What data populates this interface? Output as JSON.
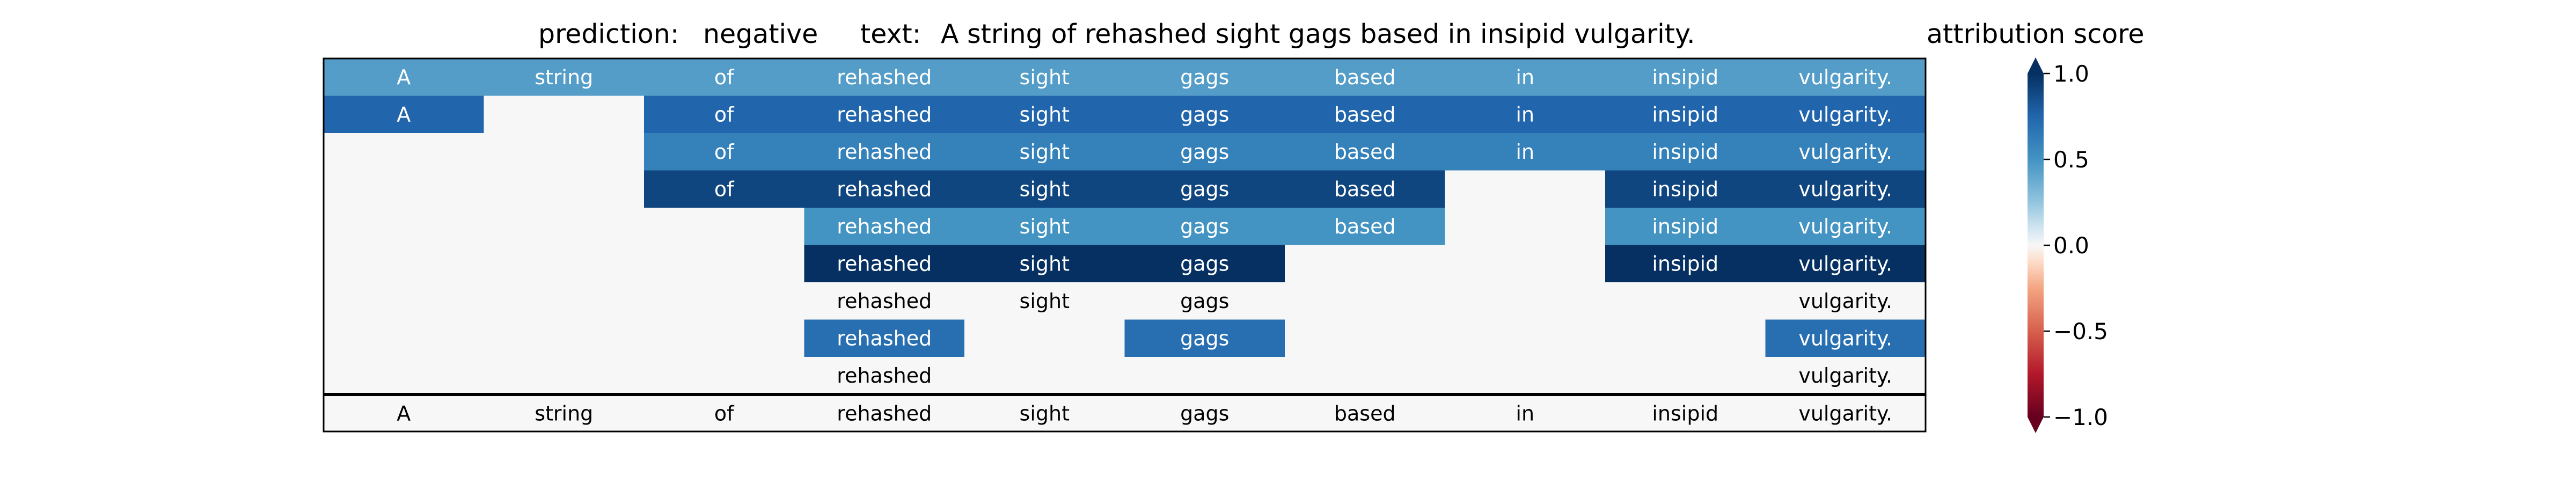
{
  "header": {
    "prediction_label": "prediction:",
    "prediction_value": "negative",
    "text_label": "text:",
    "text_value": "A string of rehashed sight gags based in insipid vulgarity."
  },
  "chart_data": {
    "type": "heatmap",
    "title": "",
    "tokens": [
      "A",
      "string",
      "of",
      "rehashed",
      "sight",
      "gags",
      "based",
      "in",
      "insipid",
      "vulgarity."
    ],
    "rows": [
      [
        0.45,
        0.45,
        0.45,
        0.45,
        0.45,
        0.45,
        0.45,
        0.45,
        0.45,
        0.45
      ],
      [
        0.75,
        0.0,
        0.75,
        0.75,
        0.75,
        0.75,
        0.75,
        0.75,
        0.75,
        0.75
      ],
      [
        0.0,
        0.0,
        0.6,
        0.6,
        0.6,
        0.6,
        0.6,
        0.6,
        0.6,
        0.6
      ],
      [
        0.0,
        0.0,
        0.9,
        0.9,
        0.9,
        0.9,
        0.9,
        0.0,
        0.9,
        0.9
      ],
      [
        0.0,
        0.0,
        0.0,
        0.5,
        0.5,
        0.5,
        0.5,
        0.0,
        0.5,
        0.5
      ],
      [
        0.0,
        0.0,
        0.0,
        1.0,
        1.0,
        1.0,
        0.0,
        0.0,
        1.0,
        1.0
      ],
      [
        0.0,
        0.0,
        0.0,
        0.0,
        0.0,
        0.0,
        0.0,
        0.0,
        0.0,
        0.0
      ],
      [
        0.0,
        0.0,
        0.0,
        0.7,
        0.0,
        0.7,
        0.0,
        0.0,
        0.0,
        0.7
      ],
      [
        0.0,
        0.0,
        0.0,
        0.0,
        0.0,
        0.0,
        0.0,
        0.0,
        0.0,
        0.0
      ]
    ],
    "row_labels": [
      [
        "A",
        "string",
        "of",
        "rehashed",
        "sight",
        "gags",
        "based",
        "in",
        "insipid",
        "vulgarity."
      ],
      [
        "A",
        "",
        "of",
        "rehashed",
        "sight",
        "gags",
        "based",
        "in",
        "insipid",
        "vulgarity."
      ],
      [
        "",
        "",
        "of",
        "rehashed",
        "sight",
        "gags",
        "based",
        "in",
        "insipid",
        "vulgarity."
      ],
      [
        "",
        "",
        "of",
        "rehashed",
        "sight",
        "gags",
        "based",
        "",
        "insipid",
        "vulgarity."
      ],
      [
        "",
        "",
        "",
        "rehashed",
        "sight",
        "gags",
        "based",
        "",
        "insipid",
        "vulgarity."
      ],
      [
        "",
        "",
        "",
        "rehashed",
        "sight",
        "gags",
        "",
        "",
        "insipid",
        "vulgarity."
      ],
      [
        "",
        "",
        "",
        "rehashed",
        "sight",
        "gags",
        "",
        "",
        "",
        "vulgarity."
      ],
      [
        "",
        "",
        "",
        "rehashed",
        "",
        "gags",
        "",
        "",
        "",
        "vulgarity."
      ],
      [
        "",
        "",
        "",
        "rehashed",
        "",
        "",
        "",
        "",
        "",
        "vulgarity."
      ]
    ],
    "colorbar": {
      "label": "attribution score",
      "range": [
        -1.0,
        1.0
      ],
      "ticks": [
        "1.0",
        "0.5",
        "0.0",
        "−0.5",
        "−1.0"
      ],
      "colormap": "RdBu"
    }
  }
}
